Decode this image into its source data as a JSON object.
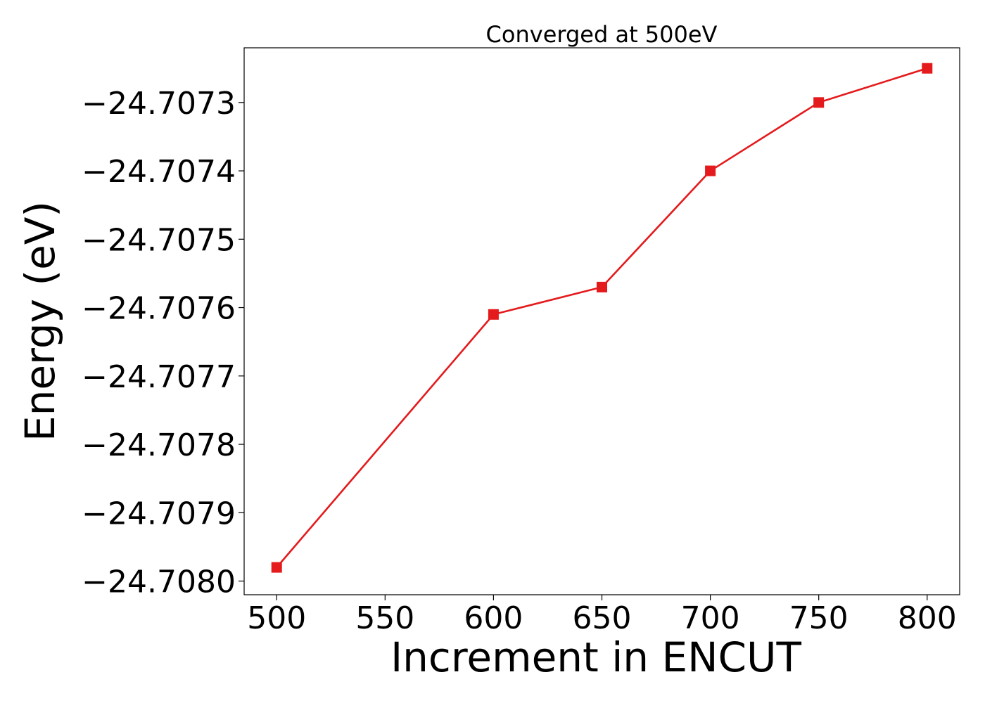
{
  "chart_data": {
    "type": "line",
    "title": "Converged at 500eV",
    "xlabel": "Increment in ENCUT",
    "ylabel": "Energy (eV)",
    "x": [
      500,
      600,
      650,
      700,
      750,
      800
    ],
    "series": [
      {
        "values": [
          -24.70798,
          -24.70761,
          -24.70757,
          -24.7074,
          -24.7073,
          -24.70725
        ],
        "color": "#e41a1c",
        "marker": "square"
      }
    ],
    "xticks": [
      500,
      550,
      600,
      650,
      700,
      750,
      800
    ],
    "xtick_labels": [
      "500",
      "550",
      "600",
      "650",
      "700",
      "750",
      "800"
    ],
    "yticks": [
      -24.708,
      -24.7079,
      -24.7078,
      -24.7077,
      -24.7076,
      -24.7075,
      -24.7074,
      -24.7073
    ],
    "ytick_labels": [
      "−24.7080",
      "−24.7079",
      "−24.7078",
      "−24.7077",
      "−24.7076",
      "−24.7075",
      "−24.7074",
      "−24.7073"
    ],
    "xlim": [
      485,
      815
    ],
    "ylim": [
      -24.70802,
      -24.70722
    ],
    "grid": false,
    "legend": "none"
  }
}
